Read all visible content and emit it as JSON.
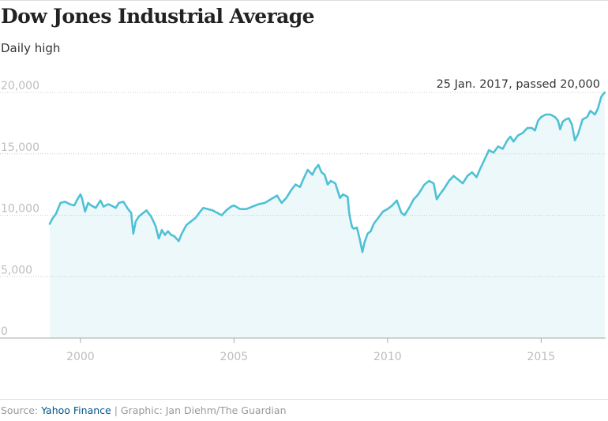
{
  "header": {
    "title": "Dow Jones Industrial Average",
    "subtitle": "Daily high"
  },
  "footer": {
    "source_prefix": "Source: ",
    "source_name": "Yahoo Finance",
    "credit": " | Graphic: Jan Diehm/The Guardian"
  },
  "colors": {
    "line": "#4fc1d5",
    "area": "#ecf8fa",
    "grid": "#cccccc",
    "axis_text": "#bdbdbd",
    "annotation_text": "#333333"
  },
  "chart_data": {
    "type": "area",
    "title": "Dow Jones Industrial Average",
    "subtitle": "Daily high",
    "xlim": [
      1999.0,
      2017.1
    ],
    "ylim": [
      0,
      20000
    ],
    "x_ticks": [
      2000,
      2005,
      2010,
      2015
    ],
    "x_tick_labels": [
      "2000",
      "2005",
      "2010",
      "2015"
    ],
    "y_ticks": [
      0,
      5000,
      10000,
      15000,
      20000
    ],
    "y_tick_labels": [
      "0",
      "5,000",
      "10,000",
      "15,000",
      "20,000"
    ],
    "grid": "horizontal dotted",
    "legend": "none",
    "annotation": {
      "x": 2017.07,
      "y": 20000,
      "text": "25 Jan. 2017, passed 20,000"
    },
    "series": [
      {
        "x": [
          1999.0,
          1999.08,
          1999.2,
          1999.35,
          1999.5,
          1999.65,
          1999.8,
          1999.9,
          2000.0,
          2000.05,
          2000.15,
          2000.25,
          2000.35,
          2000.5,
          2000.65,
          2000.75,
          2000.9,
          2001.0,
          2001.15,
          2001.25,
          2001.4,
          2001.55,
          2001.65,
          2001.72,
          2001.8,
          2001.9,
          2002.0,
          2002.15,
          2002.3,
          2002.45,
          2002.55,
          2002.65,
          2002.75,
          2002.85,
          2002.95,
          2003.05,
          2003.2,
          2003.3,
          2003.45,
          2003.6,
          2003.75,
          2003.9,
          2004.0,
          2004.15,
          2004.3,
          2004.45,
          2004.6,
          2004.75,
          2004.9,
          2005.0,
          2005.2,
          2005.4,
          2005.6,
          2005.8,
          2006.0,
          2006.2,
          2006.4,
          2006.55,
          2006.7,
          2006.85,
          2007.0,
          2007.15,
          2007.25,
          2007.4,
          2007.55,
          2007.65,
          2007.75,
          2007.85,
          2007.95,
          2008.05,
          2008.15,
          2008.3,
          2008.45,
          2008.55,
          2008.7,
          2008.75,
          2008.8,
          2008.85,
          2008.9,
          2009.0,
          2009.1,
          2009.18,
          2009.25,
          2009.35,
          2009.45,
          2009.55,
          2009.7,
          2009.85,
          2010.0,
          2010.15,
          2010.3,
          2010.45,
          2010.55,
          2010.7,
          2010.85,
          2011.0,
          2011.2,
          2011.35,
          2011.5,
          2011.6,
          2011.7,
          2011.85,
          2012.0,
          2012.15,
          2012.3,
          2012.45,
          2012.6,
          2012.75,
          2012.9,
          2013.0,
          2013.15,
          2013.3,
          2013.45,
          2013.6,
          2013.75,
          2013.9,
          2014.0,
          2014.1,
          2014.25,
          2014.4,
          2014.55,
          2014.7,
          2014.8,
          2014.9,
          2015.0,
          2015.15,
          2015.3,
          2015.45,
          2015.55,
          2015.62,
          2015.7,
          2015.8,
          2015.9,
          2016.0,
          2016.1,
          2016.2,
          2016.35,
          2016.5,
          2016.6,
          2016.75,
          2016.85,
          2016.95,
          2017.0,
          2017.07
        ],
        "y": [
          9300,
          9700,
          10100,
          11000,
          11100,
          10900,
          10800,
          11300,
          11700,
          11400,
          10300,
          11000,
          10800,
          10600,
          11200,
          10700,
          10900,
          10800,
          10600,
          11000,
          11100,
          10500,
          10200,
          8500,
          9500,
          9900,
          10100,
          10400,
          9900,
          9100,
          8100,
          8800,
          8400,
          8700,
          8400,
          8300,
          7900,
          8500,
          9200,
          9500,
          9800,
          10300,
          10600,
          10500,
          10400,
          10200,
          10000,
          10400,
          10700,
          10800,
          10500,
          10500,
          10700,
          10900,
          11000,
          11300,
          11600,
          11000,
          11400,
          12000,
          12500,
          12300,
          12900,
          13700,
          13300,
          13800,
          14100,
          13500,
          13300,
          12500,
          12800,
          12600,
          11400,
          11700,
          11500,
          10200,
          9500,
          9000,
          8900,
          9000,
          8000,
          7000,
          7800,
          8500,
          8700,
          9300,
          9800,
          10300,
          10500,
          10800,
          11200,
          10200,
          10000,
          10600,
          11300,
          11700,
          12500,
          12800,
          12600,
          11300,
          11700,
          12200,
          12800,
          13200,
          12900,
          12600,
          13200,
          13500,
          13100,
          13700,
          14500,
          15300,
          15100,
          15600,
          15400,
          16100,
          16400,
          16000,
          16500,
          16700,
          17100,
          17100,
          16900,
          17700,
          18000,
          18200,
          18200,
          18000,
          17700,
          17000,
          17600,
          17800,
          17900,
          17400,
          16100,
          16600,
          17800,
          18000,
          18500,
          18200,
          18700,
          19600,
          19800,
          20000
        ]
      }
    ]
  }
}
